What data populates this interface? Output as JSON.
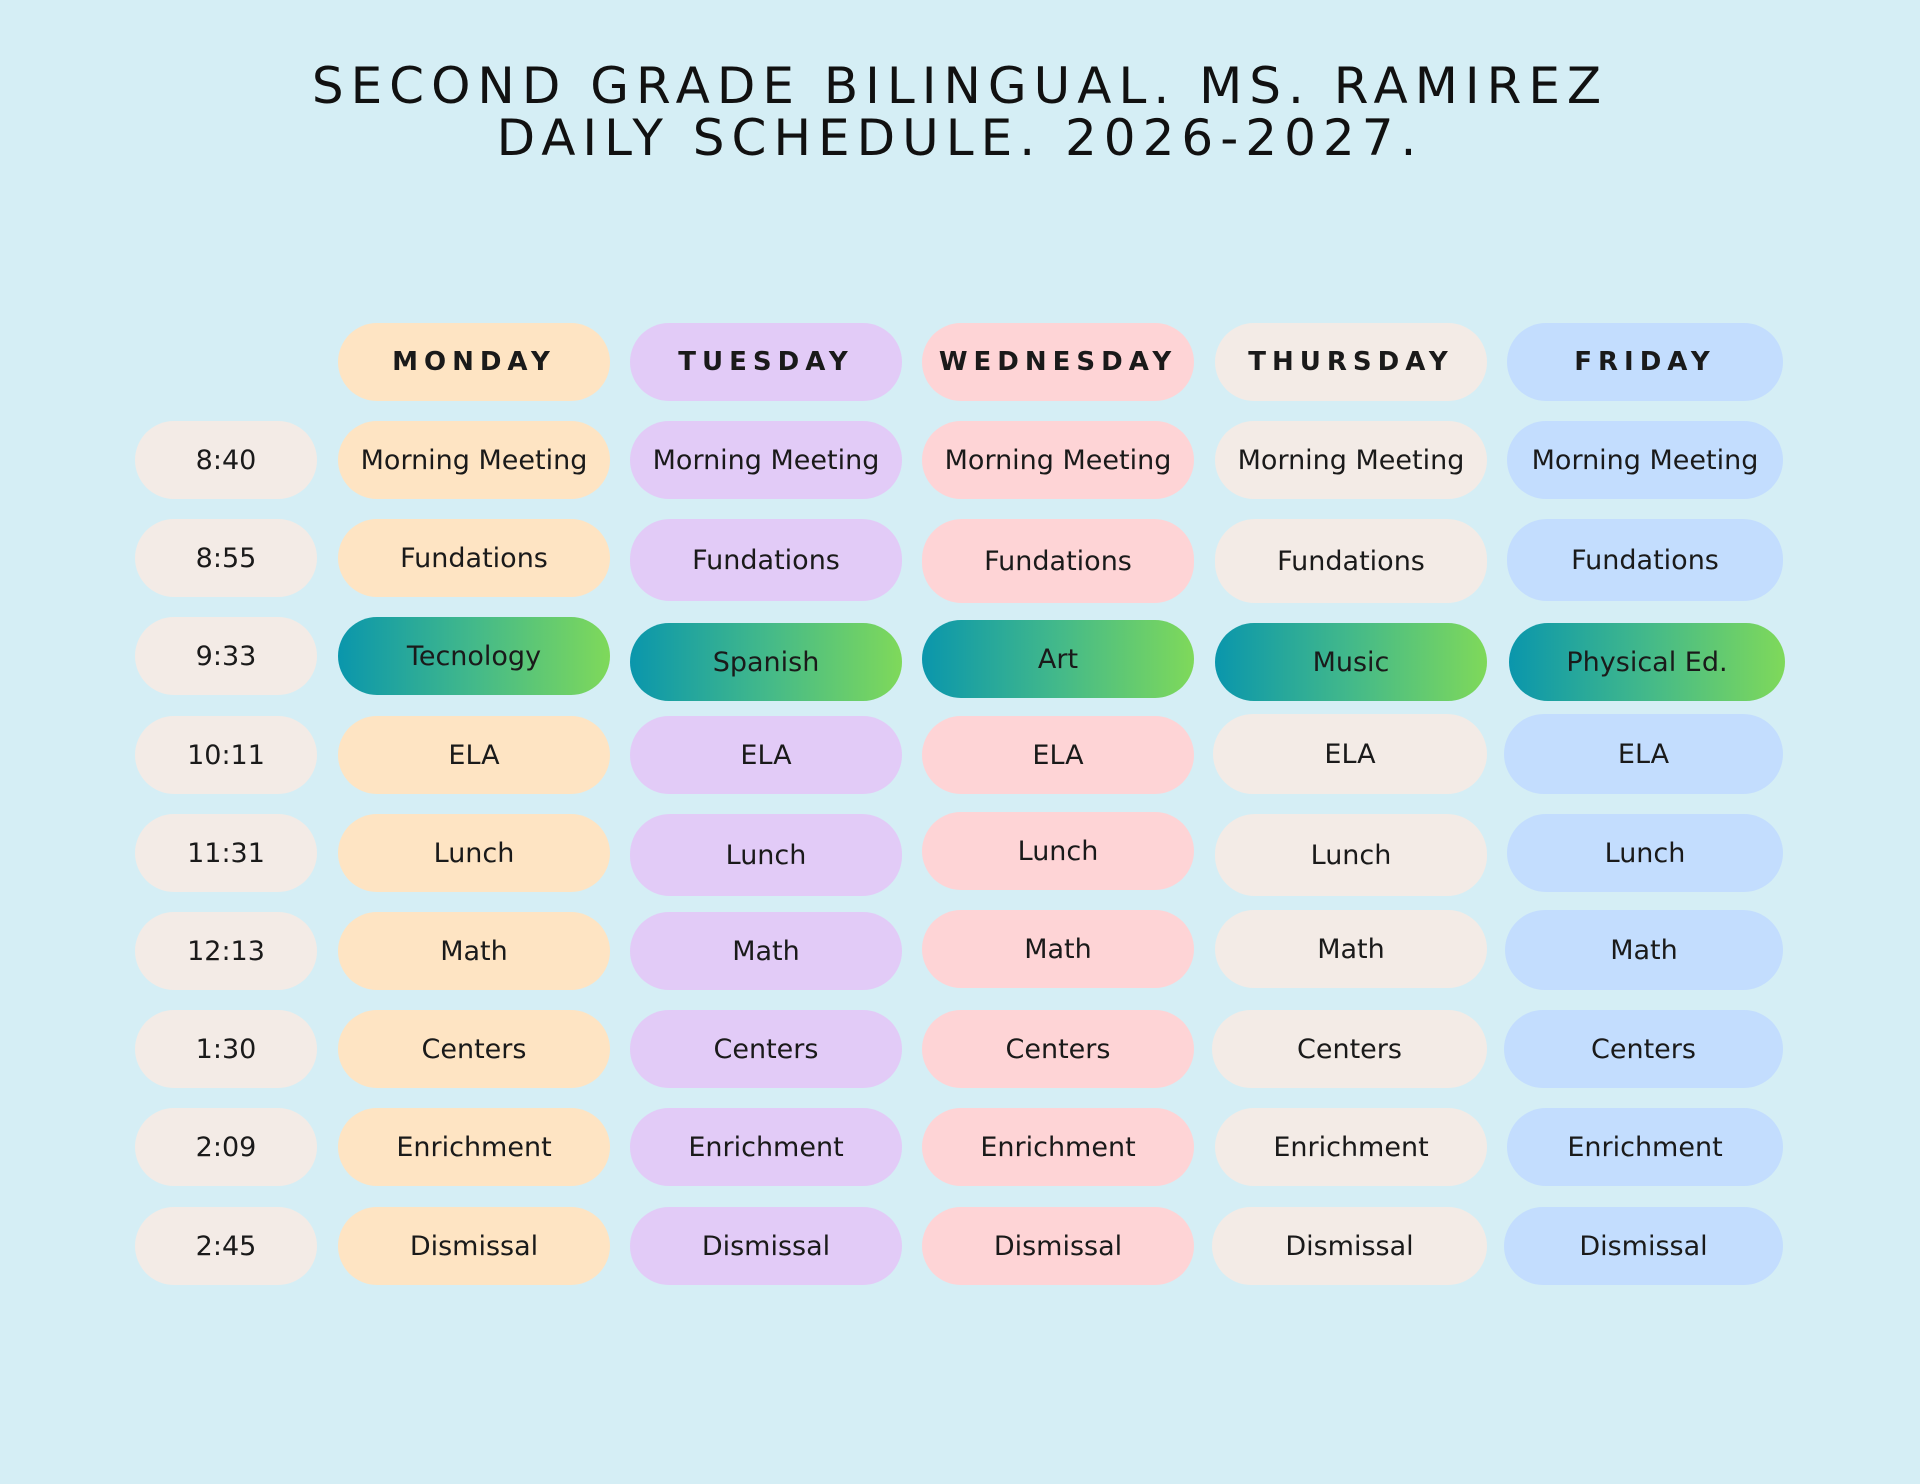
{
  "title": {
    "line1": "Second Grade Bilingual. Ms. Ramirez",
    "line2": "Daily Schedule. 2026-2027."
  },
  "days": [
    "MONDAY",
    "TUESDAY",
    "WEDNESDAY",
    "THURSDAY",
    "FRIDAY"
  ],
  "times": [
    "8:40",
    "8:55",
    "9:33",
    "10:11",
    "11:31",
    "12:13",
    "1:30",
    "2:09",
    "2:45"
  ],
  "schedule": {
    "monday": [
      "Morning Meeting",
      "Fundations",
      "Tecnology",
      "ELA",
      "Lunch",
      "Math",
      "Centers",
      "Enrichment",
      "Dismissal"
    ],
    "tuesday": [
      "Morning Meeting",
      "Fundations",
      "Spanish",
      "ELA",
      "Lunch",
      "Math",
      "Centers",
      "Enrichment",
      "Dismissal"
    ],
    "wednesday": [
      "Morning Meeting",
      "Fundations",
      "Art",
      "ELA",
      "Lunch",
      "Math",
      "Centers",
      "Enrichment",
      "Dismissal"
    ],
    "thursday": [
      "Morning Meeting",
      "Fundations",
      "Music",
      "ELA",
      "Lunch",
      "Math",
      "Centers",
      "Enrichment",
      "Dismissal"
    ],
    "friday": [
      "Morning Meeting",
      "Fundations",
      "Physical Ed.",
      "ELA",
      "Lunch",
      "Math",
      "Centers",
      "Enrichment",
      "Dismissal"
    ]
  },
  "colors": {
    "background": "#d5eef5",
    "monday": "#fee4c3",
    "tuesday": "#e2cbf7",
    "wednesday": "#fed4d6",
    "thursday": "#f3ebe6",
    "friday": "#c3ddfe",
    "time": "#f3ebe6",
    "special_start": "#0a96ac",
    "special_end": "#7fd95a"
  }
}
